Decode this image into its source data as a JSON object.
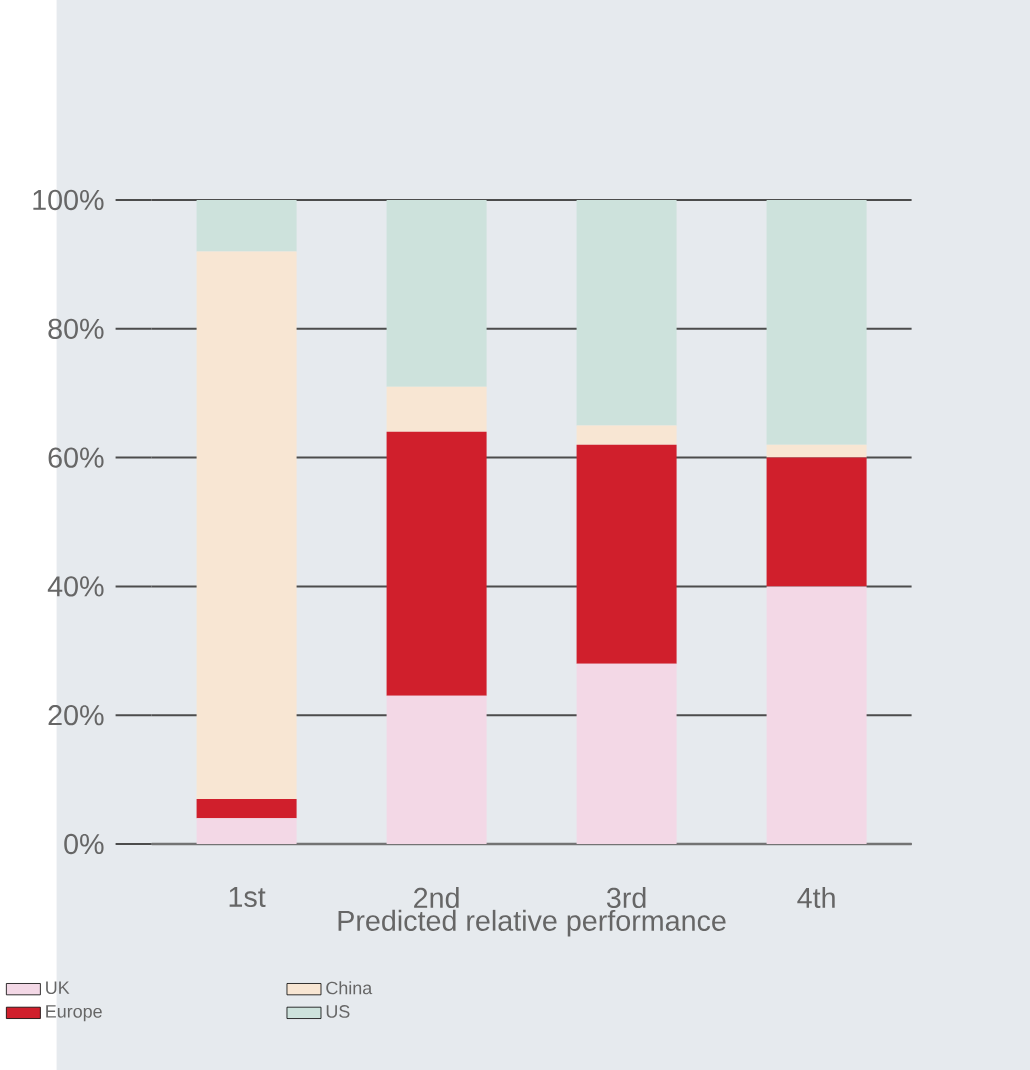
{
  "chart_data": {
    "type": "bar",
    "stacked": true,
    "xlabel": "Predicted relative performance",
    "categories": [
      "1st",
      "2nd",
      "3rd",
      "4th"
    ],
    "series": [
      {
        "name": "UK",
        "color": "#f3d8e6",
        "values": [
          4,
          23,
          28,
          40
        ]
      },
      {
        "name": "Europe",
        "color": "#d01f2c",
        "values": [
          3,
          41,
          34,
          20
        ]
      },
      {
        "name": "China",
        "color": "#f8e6d3",
        "values": [
          85,
          7,
          3,
          2
        ]
      },
      {
        "name": "US",
        "color": "#cde2dc",
        "values": [
          8,
          29,
          35,
          38
        ]
      }
    ],
    "ylim": [
      0,
      100
    ],
    "yticks": [
      {
        "value": 0,
        "label": "0%"
      },
      {
        "value": 20,
        "label": "20%"
      },
      {
        "value": 40,
        "label": "40%"
      },
      {
        "value": 60,
        "label": "60%"
      },
      {
        "value": 80,
        "label": "80%"
      },
      {
        "value": 100,
        "label": "100%"
      }
    ],
    "grid": "y",
    "legend": "bottom"
  }
}
